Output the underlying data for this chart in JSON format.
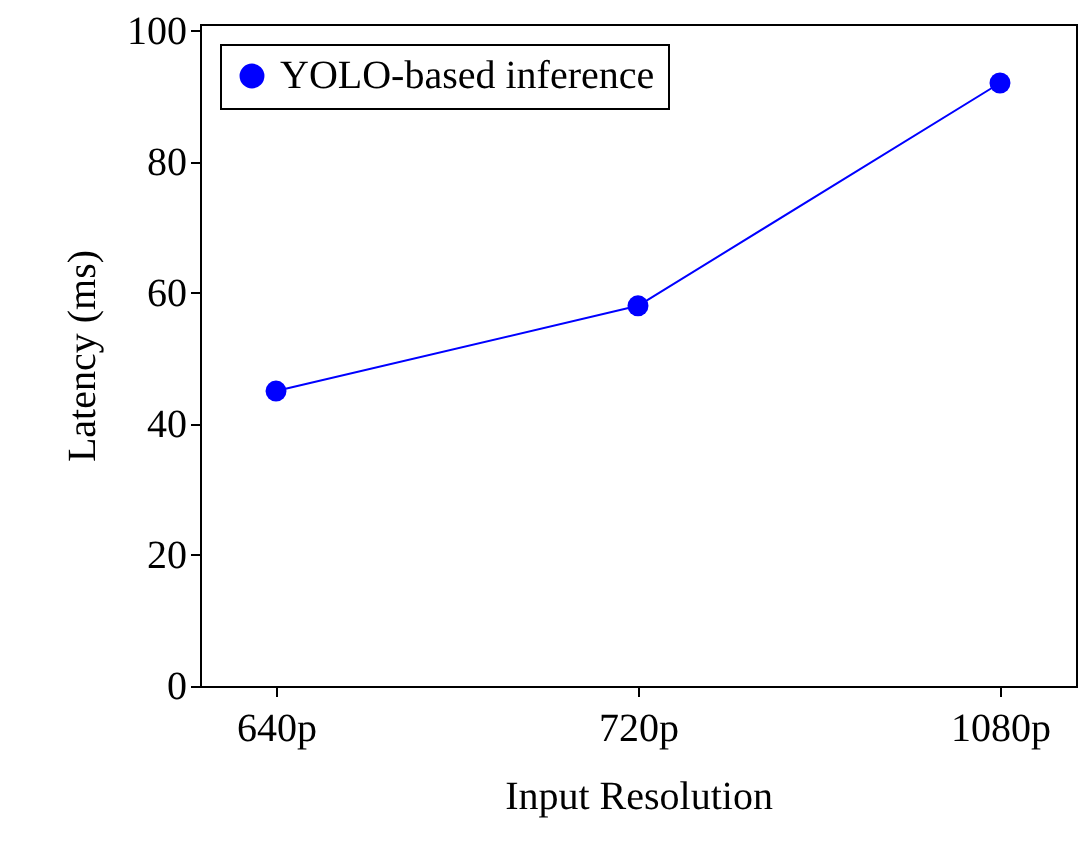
{
  "chart_data": {
    "type": "line",
    "xlabel": "Input Resolution",
    "ylabel": "Latency (ms)",
    "categories": [
      "640p",
      "720p",
      "1080p"
    ],
    "series": [
      {
        "name": "YOLO-based inference",
        "color": "#0000ff",
        "values": [
          45,
          58,
          92
        ]
      }
    ],
    "ylim": [
      0,
      101
    ],
    "yticks": [
      0,
      20,
      40,
      60,
      80,
      100
    ],
    "legend": "top left",
    "marker": "circle",
    "line_style": "solid",
    "grid": false
  }
}
